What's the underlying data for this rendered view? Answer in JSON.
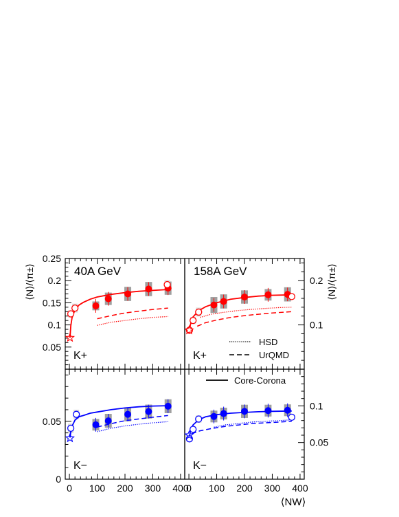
{
  "figure": {
    "ylabel_left": "⟨N⟩/⟨π±⟩",
    "ylabel_right": "⟨N⟩/⟨π±⟩",
    "xlabel": "⟨NW⟩",
    "x_ticks": [
      "0",
      "100",
      "200",
      "300",
      "400"
    ],
    "legend_top": [
      {
        "label": "HSD",
        "style": "dotted"
      },
      {
        "label": "UrQMD",
        "style": "dashed"
      }
    ],
    "legend_bottom": [
      {
        "label": "Core-Corona",
        "style": "solid"
      }
    ],
    "colors": {
      "kplus": "#ff0000",
      "kminus": "#0000ff",
      "syst_dark": "#a0a0a0",
      "syst_light": "#d9d9d9"
    }
  },
  "chart_data": [
    {
      "type": "scatter",
      "panel": "top-left",
      "title": "40A GeV",
      "particle_label": "K+",
      "xlim": [
        -15,
        415
      ],
      "ylim": [
        0,
        0.25
      ],
      "y_ticks": [
        "0.05",
        "0.1",
        "0.15",
        "0.2",
        "0.25"
      ],
      "series": [
        {
          "marker": "filled-circle",
          "x": [
            95,
            140,
            210,
            285,
            355
          ],
          "y": [
            0.143,
            0.159,
            0.17,
            0.181,
            0.183
          ],
          "syst": [
            0.01,
            0.014,
            0.016,
            0.016,
            0.015
          ]
        },
        {
          "marker": "open-circle",
          "x": [
            5,
            20,
            352
          ],
          "y": [
            0.125,
            0.138,
            0.191
          ],
          "syst": [
            0.008,
            0.01,
            0.01
          ]
        },
        {
          "marker": "open-star",
          "x": [
            2
          ],
          "y": [
            0.071
          ],
          "syst": [
            0
          ]
        }
      ],
      "curves": {
        "core_corona": {
          "x": [
            2,
            5,
            10,
            20,
            35,
            50,
            75,
            100,
            150,
            200,
            250,
            300,
            355
          ],
          "y": [
            0.071,
            0.098,
            0.118,
            0.134,
            0.145,
            0.151,
            0.158,
            0.163,
            0.169,
            0.173,
            0.176,
            0.178,
            0.18
          ]
        },
        "hsd": {
          "x": [
            100,
            150,
            200,
            250,
            300,
            355
          ],
          "y": [
            0.099,
            0.106,
            0.11,
            0.114,
            0.117,
            0.119
          ]
        },
        "urqmd": {
          "x": [
            100,
            150,
            200,
            250,
            300,
            355
          ],
          "y": [
            0.114,
            0.121,
            0.127,
            0.131,
            0.135,
            0.138
          ]
        }
      }
    },
    {
      "type": "scatter",
      "panel": "top-right",
      "title": "158A GeV",
      "particle_label": "K+",
      "xlim": [
        -15,
        415
      ],
      "ylim": [
        0,
        0.25
      ],
      "y_ticks": [
        "0.1",
        "0.2"
      ],
      "series": [
        {
          "marker": "filled-circle",
          "x": [
            90,
            125,
            200,
            285,
            355
          ],
          "y": [
            0.145,
            0.153,
            0.163,
            0.168,
            0.169
          ],
          "syst": [
            0.018,
            0.016,
            0.015,
            0.013,
            0.016
          ]
        },
        {
          "marker": "open-circle",
          "x": [
            2,
            15,
            35,
            370
          ],
          "y": [
            0.088,
            0.11,
            0.129,
            0.164
          ],
          "syst": [
            0.006,
            0.008,
            0.01,
            0.006
          ]
        },
        {
          "marker": "open-star",
          "x": [
            1
          ],
          "y": [
            0.088
          ],
          "syst": [
            0
          ]
        }
      ],
      "curves": {
        "core_corona": {
          "x": [
            1,
            5,
            15,
            35,
            60,
            100,
            150,
            200,
            250,
            300,
            370
          ],
          "y": [
            0.08,
            0.1,
            0.118,
            0.132,
            0.141,
            0.15,
            0.158,
            0.162,
            0.165,
            0.167,
            0.168
          ]
        },
        "hsd": {
          "x": [
            40,
            80,
            120,
            170,
            220,
            270,
            320,
            370
          ],
          "y": [
            0.117,
            0.124,
            0.128,
            0.132,
            0.135,
            0.137,
            0.139,
            0.14
          ]
        },
        "urqmd": {
          "x": [
            30,
            60,
            100,
            150,
            200,
            250,
            300,
            370
          ],
          "y": [
            0.097,
            0.105,
            0.111,
            0.117,
            0.121,
            0.124,
            0.127,
            0.13
          ]
        }
      }
    },
    {
      "type": "scatter",
      "panel": "bottom-left",
      "particle_label": "K−",
      "xlim": [
        -15,
        415
      ],
      "ylim": [
        0,
        0.095
      ],
      "y_ticks": [
        "0",
        "0.05"
      ],
      "series": [
        {
          "marker": "filled-circle",
          "x": [
            95,
            140,
            210,
            285,
            355
          ],
          "y": [
            0.047,
            0.0504,
            0.056,
            0.0584,
            0.063
          ],
          "syst": [
            0.005,
            0.006,
            0.006,
            0.006,
            0.006
          ]
        },
        {
          "marker": "open-circle",
          "x": [
            5,
            25
          ],
          "y": [
            0.044,
            0.056
          ],
          "syst": [
            0.004,
            0.004
          ]
        },
        {
          "marker": "open-star",
          "x": [
            2
          ],
          "y": [
            0.0355
          ],
          "syst": [
            0
          ]
        }
      ],
      "curves": {
        "core_corona": {
          "x": [
            2,
            5,
            10,
            20,
            35,
            50,
            75,
            100,
            150,
            200,
            250,
            300,
            355
          ],
          "y": [
            0.036,
            0.041,
            0.046,
            0.051,
            0.054,
            0.055,
            0.057,
            0.058,
            0.06,
            0.0615,
            0.0625,
            0.0632,
            0.0635
          ]
        },
        "hsd": {
          "x": [
            100,
            150,
            200,
            250,
            300,
            355
          ],
          "y": [
            0.041,
            0.044,
            0.046,
            0.0475,
            0.0487,
            0.0497
          ]
        },
        "urqmd": {
          "x": [
            100,
            150,
            200,
            250,
            300,
            355
          ],
          "y": [
            0.045,
            0.048,
            0.0505,
            0.052,
            0.0535,
            0.055
          ]
        }
      }
    },
    {
      "type": "scatter",
      "panel": "bottom-right",
      "particle_label": "K−",
      "xlim": [
        -15,
        415
      ],
      "ylim": [
        0,
        0.15
      ],
      "y_ticks": [
        "0.05",
        "0.1"
      ],
      "series": [
        {
          "marker": "filled-circle",
          "x": [
            90,
            125,
            200,
            285,
            355
          ],
          "y": [
            0.0855,
            0.0895,
            0.0925,
            0.0935,
            0.094
          ],
          "syst": [
            0.008,
            0.008,
            0.009,
            0.008,
            0.008
          ]
        },
        {
          "marker": "open-circle",
          "x": [
            2,
            15,
            35,
            370
          ],
          "y": [
            0.055,
            0.068,
            0.082,
            0.0845
          ],
          "syst": [
            0.004,
            0.004,
            0.005,
            0.004
          ]
        },
        {
          "marker": "open-star",
          "x": [
            1
          ],
          "y": [
            0.06
          ],
          "syst": [
            0
          ]
        }
      ],
      "curves": {
        "core_corona": {
          "x": [
            1,
            5,
            15,
            35,
            60,
            100,
            150,
            200,
            250,
            300,
            370
          ],
          "y": [
            0.056,
            0.065,
            0.074,
            0.081,
            0.085,
            0.088,
            0.09,
            0.091,
            0.092,
            0.0925,
            0.093
          ]
        },
        "hsd": {
          "x": [
            90,
            130,
            180,
            230,
            280,
            330,
            370
          ],
          "y": [
            0.071,
            0.074,
            0.076,
            0.078,
            0.079,
            0.08,
            0.081
          ]
        },
        "urqmd": {
          "x": [
            10,
            40,
            80,
            130,
            180,
            230,
            280,
            330,
            370
          ],
          "y": [
            0.062,
            0.066,
            0.069,
            0.072,
            0.074,
            0.076,
            0.077,
            0.078,
            0.079
          ]
        }
      }
    }
  ]
}
